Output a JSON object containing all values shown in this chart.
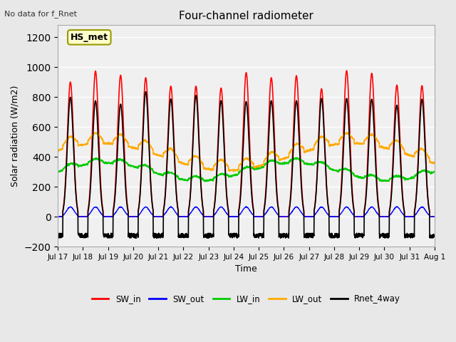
{
  "title": "Four-channel radiometer",
  "top_left_text": "No data for f_Rnet",
  "ylabel": "Solar radiation (W/m2)",
  "xlabel": "Time",
  "ylim": [
    -200,
    1280
  ],
  "yticks": [
    -200,
    0,
    200,
    400,
    600,
    800,
    1000,
    1200
  ],
  "x_tick_labels": [
    "Jul 17",
    "Jul 18",
    "Jul 19",
    "Jul 20",
    "Jul 21",
    "Jul 22",
    "Jul 23",
    "Jul 24",
    "Jul 25",
    "Jul 26",
    "Jul 27",
    "Jul 28",
    "Jul 29",
    "Jul 30",
    "Jul 31",
    "Aug 1"
  ],
  "legend_labels": [
    "SW_in",
    "SW_out",
    "LW_in",
    "LW_out",
    "Rnet_4way"
  ],
  "legend_colors": [
    "#ff0000",
    "#0000ff",
    "#00cc00",
    "#ffaa00",
    "#000000"
  ],
  "annotation_box": "HS_met",
  "annotation_box_color": "#ffffcc",
  "annotation_box_border": "#999900",
  "bg_color": "#e8e8e8",
  "plot_bg_color": "#f0f0f0",
  "grid_color": "#ffffff",
  "n_days": 15,
  "SW_in_peak": 980,
  "SW_out_peak": 65,
  "LW_in_base": 300,
  "LW_in_amp": 60,
  "LW_out_base": 400,
  "LW_out_amp": 90,
  "Rnet_peak": 840,
  "Rnet_night": -110
}
